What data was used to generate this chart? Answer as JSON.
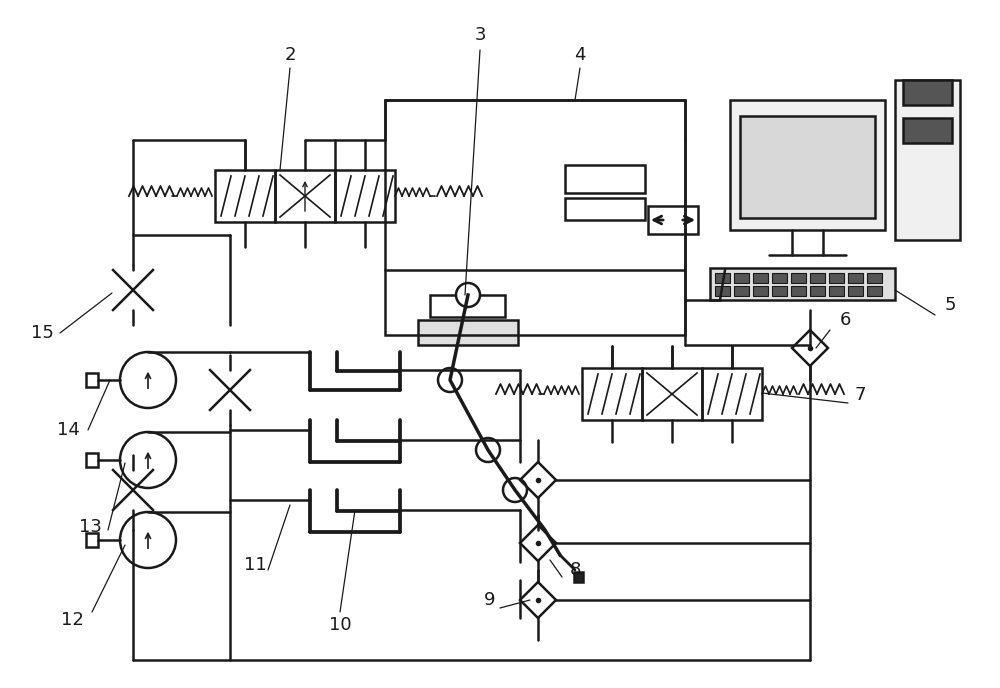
{
  "bg_color": "#ffffff",
  "lc": "#1a1a1a",
  "lw": 1.8,
  "figsize": [
    10.0,
    6.88
  ],
  "dpi": 100,
  "xlim": [
    0,
    1000
  ],
  "ylim": [
    0,
    688
  ]
}
